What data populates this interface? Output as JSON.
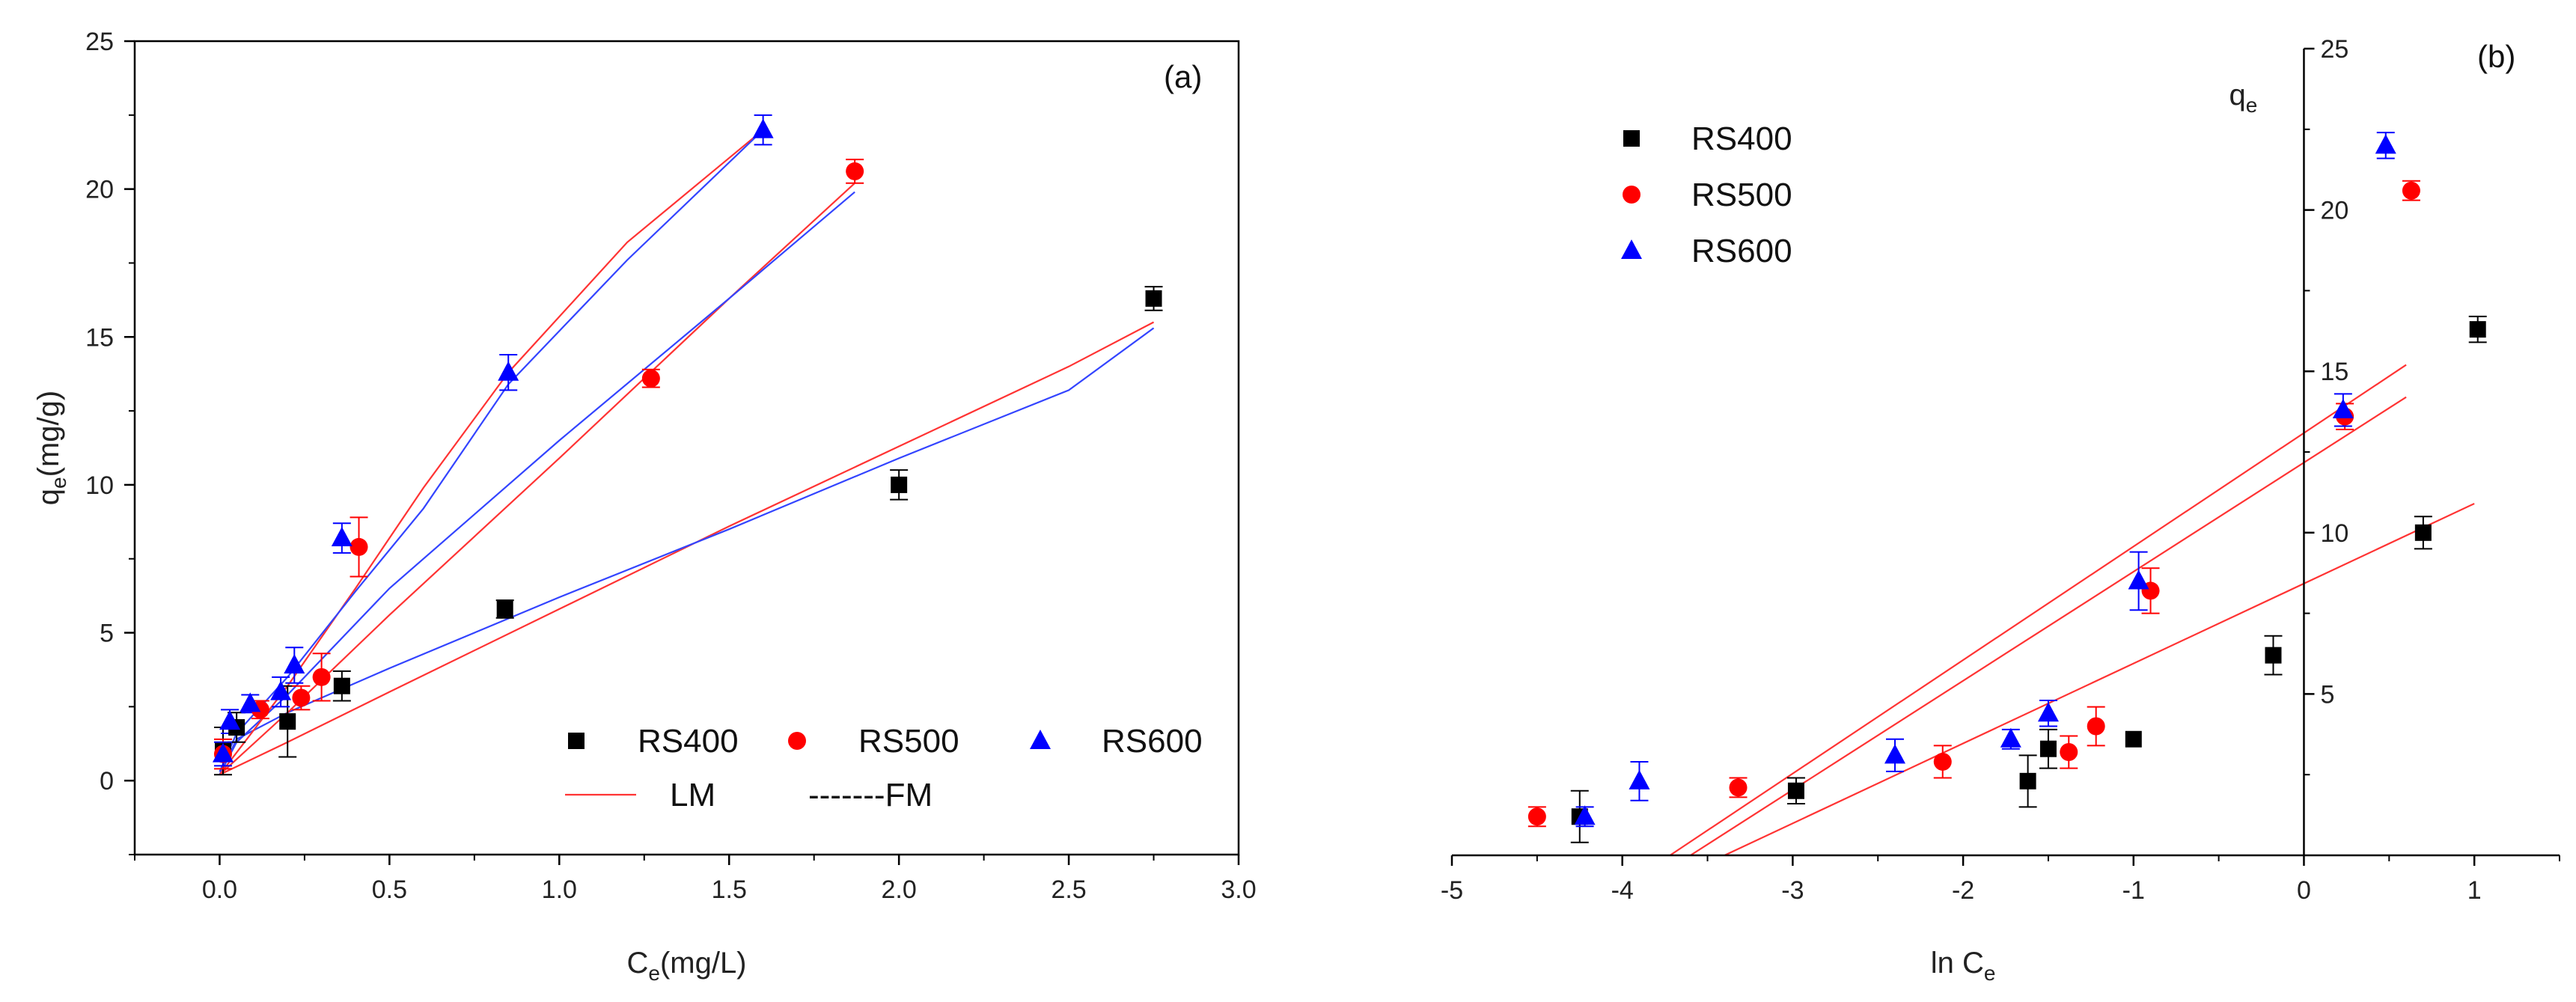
{
  "colors": {
    "RS400": "#000000",
    "RS500": "#ff0000",
    "RS600": "#0000ff",
    "LM": "#ff3333",
    "FM_blue": "#3344ff",
    "axis": "#000000"
  },
  "chart_data": [
    {
      "type": "scatter",
      "panel_label": "(a)",
      "xlabel_main": "C",
      "xlabel_sub": "e",
      "xlabel_tail": "(mg/L)",
      "ylabel_main": "q",
      "ylabel_sub": "e",
      "ylabel_tail": "(mg/g)",
      "xlim": [
        -0.25,
        3.0
      ],
      "ylim": [
        -2.5,
        25
      ],
      "xticks": [
        0.0,
        0.5,
        1.0,
        1.5,
        2.0,
        2.5,
        3.0
      ],
      "xtick_labels": [
        "0.0",
        "0.5",
        "1.0",
        "1.5",
        "2.0",
        "2.5",
        "3.0"
      ],
      "yticks": [
        0,
        5,
        10,
        15,
        20,
        25
      ],
      "ytick_labels": [
        "0",
        "5",
        "10",
        "15",
        "20",
        "25"
      ],
      "legend": {
        "placement": "bottom-right",
        "series_labels": [
          "RS400",
          "RS500",
          "RS600"
        ],
        "lm_label": "LM",
        "fm_label": "-------FM"
      },
      "series": [
        {
          "name": "RS400",
          "marker": "square",
          "x": [
            0.01,
            0.05,
            0.2,
            0.36,
            0.84,
            2.0,
            2.75
          ],
          "y": [
            1.0,
            1.8,
            2.0,
            3.2,
            5.8,
            10.0,
            16.3
          ],
          "err": [
            0.8,
            0.5,
            1.2,
            0.5,
            0.3,
            0.5,
            0.4
          ]
        },
        {
          "name": "RS500",
          "marker": "circle",
          "x": [
            0.01,
            0.12,
            0.24,
            0.3,
            0.41,
            1.27,
            1.87
          ],
          "y": [
            0.9,
            2.4,
            2.8,
            3.5,
            7.9,
            13.6,
            20.6
          ],
          "err": [
            0.5,
            0.3,
            0.4,
            0.8,
            1.0,
            0.3,
            0.4
          ]
        },
        {
          "name": "RS600",
          "marker": "triangle",
          "x": [
            0.01,
            0.03,
            0.09,
            0.18,
            0.22,
            0.36,
            0.85,
            1.6
          ],
          "y": [
            0.9,
            2.0,
            2.6,
            3.0,
            3.9,
            8.2,
            13.8,
            22.0
          ],
          "err": [
            0.4,
            0.4,
            0.3,
            0.5,
            0.6,
            0.5,
            0.6,
            0.5
          ]
        }
      ],
      "fit_lines": [
        {
          "series": "RS400",
          "kind": "LM",
          "x": [
            0.0,
            0.2,
            0.5,
            1.0,
            1.5,
            2.0,
            2.5,
            2.75
          ],
          "y": [
            0.2,
            1.3,
            3.0,
            5.8,
            8.6,
            11.3,
            14.0,
            15.5
          ]
        },
        {
          "series": "RS400",
          "kind": "FM",
          "x": [
            0.0,
            0.05,
            0.2,
            0.5,
            1.0,
            1.5,
            2.0,
            2.5,
            2.75
          ],
          "y": [
            0.2,
            1.4,
            2.3,
            3.8,
            6.2,
            8.5,
            10.9,
            13.2,
            15.3
          ]
        },
        {
          "series": "RS500",
          "kind": "LM",
          "x": [
            0.0,
            0.2,
            0.5,
            1.0,
            1.5,
            1.87
          ],
          "y": [
            0.2,
            2.3,
            5.6,
            10.9,
            16.3,
            20.2
          ]
        },
        {
          "series": "RS500",
          "kind": "FM",
          "x": [
            0.0,
            0.05,
            0.2,
            0.5,
            1.0,
            1.5,
            1.87
          ],
          "y": [
            0.2,
            1.3,
            2.9,
            6.5,
            11.5,
            16.3,
            19.9
          ]
        },
        {
          "series": "RS600",
          "kind": "LM",
          "x": [
            0.0,
            0.2,
            0.4,
            0.6,
            0.85,
            1.2,
            1.6
          ],
          "y": [
            0.2,
            3.2,
            6.5,
            9.9,
            13.8,
            18.2,
            22.0
          ]
        },
        {
          "series": "RS600",
          "kind": "FM",
          "x": [
            0.0,
            0.05,
            0.2,
            0.4,
            0.6,
            0.85,
            1.2,
            1.6
          ],
          "y": [
            0.3,
            1.6,
            3.5,
            6.4,
            9.2,
            13.4,
            17.6,
            22.0
          ]
        }
      ]
    },
    {
      "type": "scatter",
      "panel_label": "(b)",
      "xlabel_main": "ln C",
      "xlabel_sub": "e",
      "ylabel_main": "q",
      "ylabel_sub": "e",
      "xlim": [
        -5,
        1.5
      ],
      "ylim": [
        0,
        25
      ],
      "xticks": [
        -5,
        -4,
        -3,
        -2,
        -1,
        0,
        1
      ],
      "xtick_labels": [
        "-5",
        "-4",
        "-3",
        "-2",
        "-1",
        "0",
        "1"
      ],
      "yticks": [
        5,
        10,
        15,
        20,
        25
      ],
      "ytick_labels": [
        "5",
        "10",
        "15",
        "20",
        "25"
      ],
      "legend": {
        "placement": "top-left",
        "series_labels": [
          "RS400",
          "RS500",
          "RS600"
        ]
      },
      "series": [
        {
          "name": "RS400",
          "marker": "square",
          "x": [
            -4.25,
            -2.98,
            -1.62,
            -1.5,
            -1.0,
            -0.18,
            0.7,
            1.02
          ],
          "y": [
            1.2,
            2.0,
            2.3,
            3.3,
            3.6,
            6.2,
            10.0,
            16.3
          ],
          "err": [
            0.8,
            0.4,
            0.8,
            0.6,
            0.0,
            0.6,
            0.5,
            0.4
          ]
        },
        {
          "name": "RS500",
          "marker": "circle",
          "x": [
            -4.5,
            -3.32,
            -2.12,
            -1.38,
            -1.22,
            -0.9,
            0.24,
            0.63
          ],
          "y": [
            1.2,
            2.1,
            2.9,
            3.2,
            4.0,
            8.2,
            13.6,
            20.6
          ],
          "err": [
            0.3,
            0.3,
            0.5,
            0.5,
            0.6,
            0.7,
            0.4,
            0.3
          ]
        },
        {
          "name": "RS600",
          "marker": "triangle",
          "x": [
            -4.22,
            -3.9,
            -2.4,
            -1.72,
            -1.5,
            -0.97,
            0.23,
            0.48
          ],
          "y": [
            1.2,
            2.3,
            3.1,
            3.6,
            4.4,
            8.5,
            13.8,
            22.0
          ],
          "err": [
            0.3,
            0.6,
            0.5,
            0.3,
            0.4,
            0.9,
            0.5,
            0.4
          ]
        }
      ],
      "fit_lines": [
        {
          "series": "RS400",
          "x": [
            -3.4,
            1.0
          ],
          "y": [
            0.0,
            10.9
          ]
        },
        {
          "series": "RS500",
          "x": [
            -3.6,
            0.6
          ],
          "y": [
            0.0,
            14.2
          ]
        },
        {
          "series": "RS600",
          "x": [
            -3.72,
            0.6
          ],
          "y": [
            0.0,
            15.2
          ]
        }
      ]
    }
  ]
}
